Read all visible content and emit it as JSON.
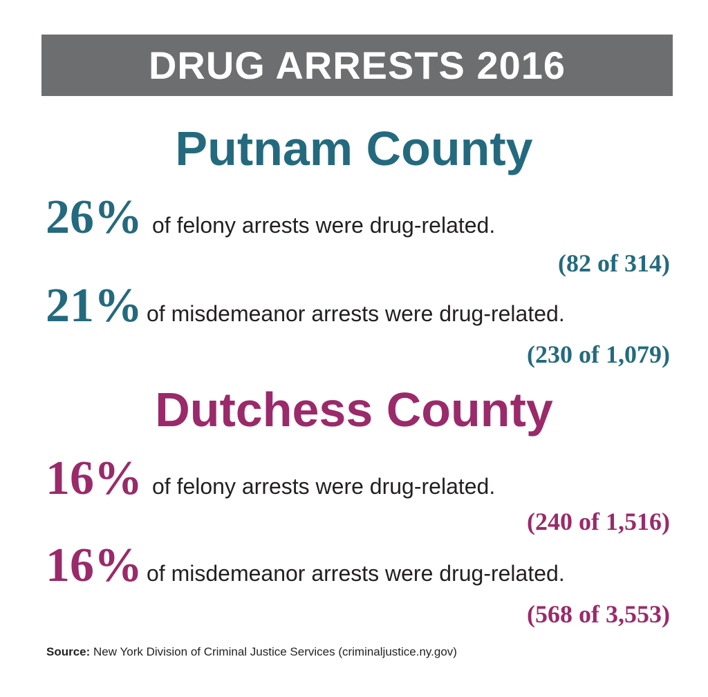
{
  "title": "DRUG ARRESTS 2016",
  "colors": {
    "header_bg": "#6d6e70",
    "putnam": "#246a7e",
    "dutchess": "#9a2a6a"
  },
  "putnam": {
    "name": "Putnam County",
    "felony": {
      "percent": "26%",
      "text": "of felony arrests were drug-related.",
      "count": "(82 of 314)"
    },
    "misdemeanor": {
      "percent": "21%",
      "text": "of misdemeanor arrests were drug-related.",
      "count": "(230 of 1,079)"
    }
  },
  "dutchess": {
    "name": "Dutchess County",
    "felony": {
      "percent": "16%",
      "text": "of felony arrests were drug-related.",
      "count": "(240 of 1,516)"
    },
    "misdemeanor": {
      "percent": "16%",
      "text": "of misdemeanor arrests were drug-related.",
      "count": "(568 of 3,553)"
    }
  },
  "source": {
    "label": "Source:",
    "text": "New York Division of Criminal Justice Services (criminaljustice.ny.gov)"
  }
}
